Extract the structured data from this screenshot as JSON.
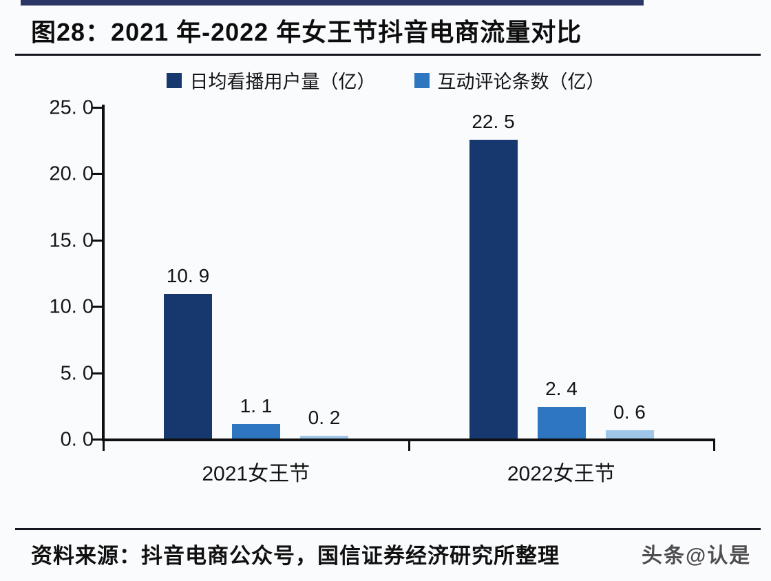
{
  "figure": {
    "title": "图28：2021 年-2022 年女王节抖音电商流量对比",
    "source": "资料来源：抖音电商公众号，国信证券经济研究所整理",
    "watermark": "头条@认是"
  },
  "chart_data": {
    "type": "bar",
    "title": "2021 年-2022 年女王节抖音电商流量对比",
    "categories": [
      "2021女王节",
      "2022女王节"
    ],
    "series": [
      {
        "name": "日均看播用户量（亿）",
        "color": "#17386e",
        "values": [
          10.9,
          22.5
        ],
        "labels": [
          "10. 9",
          "22. 5"
        ],
        "in_legend": true
      },
      {
        "name": "互动评论条数（亿）",
        "color": "#2e76bf",
        "values": [
          1.1,
          2.4
        ],
        "labels": [
          "1. 1",
          "2. 4"
        ],
        "in_legend": true
      },
      {
        "name": "",
        "color": "#9fc5e8",
        "values": [
          0.2,
          0.6
        ],
        "labels": [
          "0. 2",
          "0. 6"
        ],
        "in_legend": false
      }
    ],
    "ylim": [
      0,
      25
    ],
    "yticks": [
      0,
      5,
      10,
      15,
      20,
      25
    ],
    "ytick_labels": [
      "0. 0",
      "5. 0",
      "10. 0",
      "15. 0",
      "20. 0",
      "25. 0"
    ],
    "xlabel": "",
    "ylabel": "",
    "grid": false,
    "legend_position": "top-center"
  }
}
